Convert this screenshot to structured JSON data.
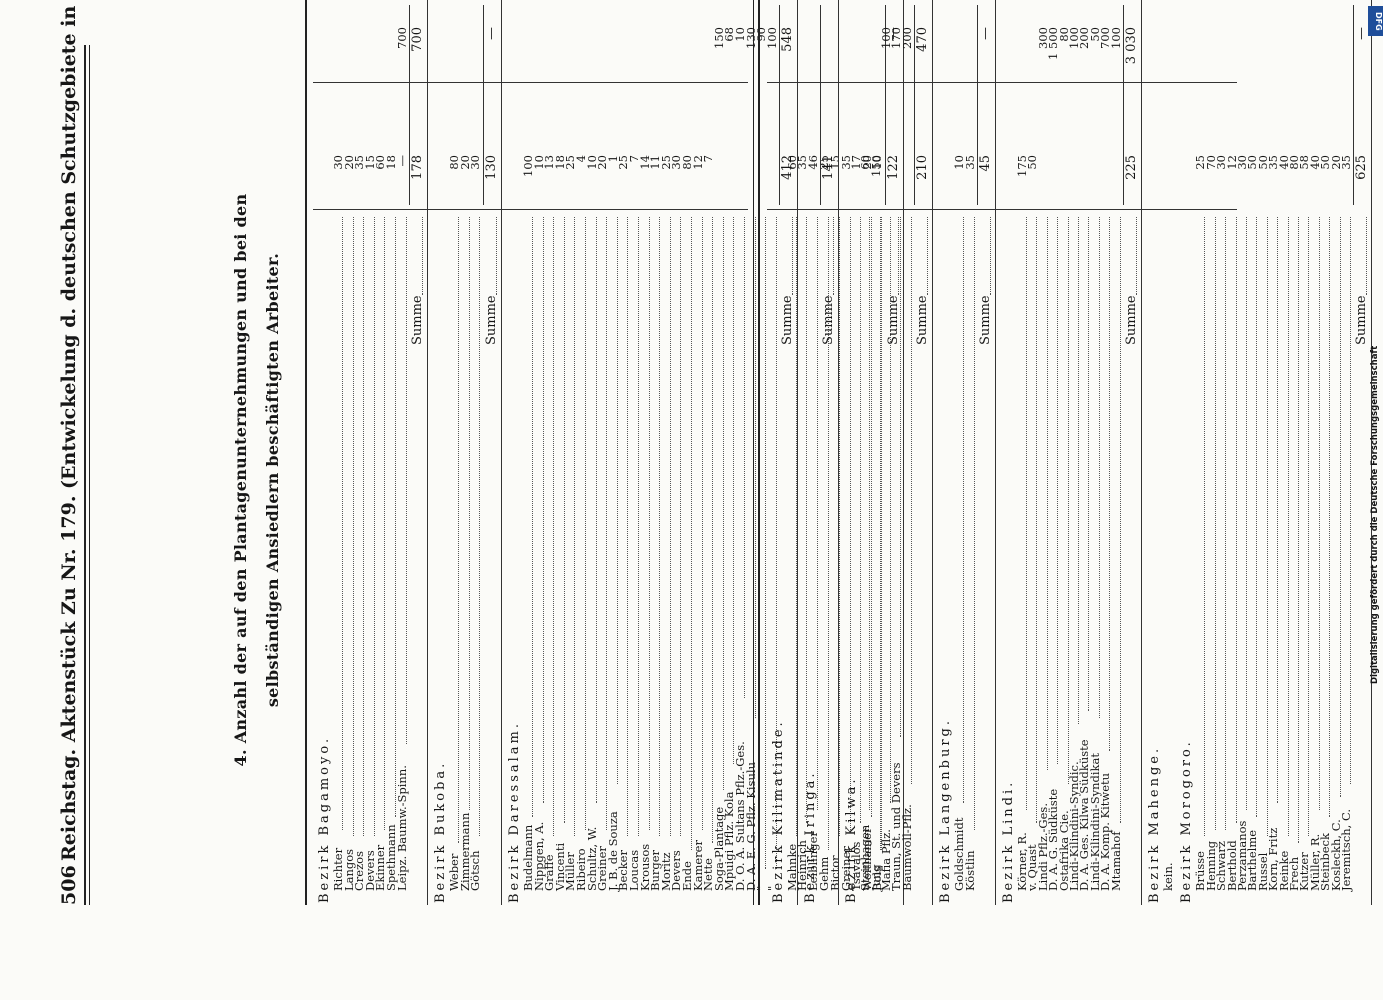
{
  "header": {
    "page_number": "506",
    "running_head": "Reichstag. Aktenstück Zu Nr. 179. (Entwickelung d. deutschen Schutzgebiete in Afrika u. d. Südsee. B.)"
  },
  "title": "4. Anzahl der auf den Plantagenunternehmungen und bei den selbständigen Ansiedlern beschäftigten Arbeiter.",
  "footer": {
    "note": "Digitalisierung gefördert durch die Deutsche Forschungsgemeinschaft",
    "badge": "DFG"
  },
  "left_sections": [
    {
      "title": "Bezirk Bagamoyo.",
      "rows": [
        {
          "name": "Richter",
          "a": "30",
          "b": ""
        },
        {
          "name": "Langos",
          "a": "20",
          "b": ""
        },
        {
          "name": "Crezos",
          "a": "35",
          "b": ""
        },
        {
          "name": "Devers",
          "a": "15",
          "b": ""
        },
        {
          "name": "Ekinner",
          "a": "60",
          "b": ""
        },
        {
          "name": "Spethmann",
          "a": "18",
          "b": ""
        },
        {
          "name": "Leipz. Baumw.-Spinn.",
          "a": "—",
          "b": "700"
        }
      ],
      "sum_label": "Summe",
      "sum_a": "178",
      "sum_b": "700"
    },
    {
      "title": "Bezirk Bukoba.",
      "rows": [
        {
          "name": "Weber",
          "a": "80",
          "b": ""
        },
        {
          "name": "Zimmermann",
          "a": "20",
          "b": ""
        },
        {
          "name": "Götsch",
          "a": "30",
          "b": ""
        }
      ],
      "sum_label": "Summe",
      "sum_a": "130",
      "sum_b": "—"
    },
    {
      "title": "Bezirk Daressalam.",
      "rows": [
        {
          "name": "Budelmann",
          "a": "100",
          "b": ""
        },
        {
          "name": "Nippgen, A.",
          "a": "10",
          "b": ""
        },
        {
          "name": "Graffe",
          "a": "13",
          "b": ""
        },
        {
          "name": "Vincenti",
          "a": "18",
          "b": ""
        },
        {
          "name": "Müller",
          "a": "25",
          "b": ""
        },
        {
          "name": "Ribeiro",
          "a": "4",
          "b": ""
        },
        {
          "name": "Schultz, W.",
          "a": "10",
          "b": ""
        },
        {
          "name": "Greiner",
          "a": "20",
          "b": ""
        },
        {
          "name": "J. B. de Souza",
          "a": "1",
          "b": ""
        },
        {
          "name": "Becker",
          "a": "25",
          "b": ""
        },
        {
          "name": "Loucas",
          "a": "7",
          "b": ""
        },
        {
          "name": "Krousos",
          "a": "14",
          "b": ""
        },
        {
          "name": "Burger",
          "a": "11",
          "b": ""
        },
        {
          "name": "Moritz",
          "a": "25",
          "b": ""
        },
        {
          "name": "Devers",
          "a": "30",
          "b": ""
        },
        {
          "name": "Ende",
          "a": "80",
          "b": ""
        },
        {
          "name": "Kamerer",
          "a": "12",
          "b": ""
        },
        {
          "name": "Nette",
          "a": "7",
          "b": ""
        },
        {
          "name": "Soga-Plantage",
          "a": "",
          "b": "150"
        },
        {
          "name": "Mpuigi Pflz. Kola",
          "a": "",
          "b": "68"
        },
        {
          "name": "D. O. A. Sultans Pflz.-Ges.",
          "a": "",
          "b": "10"
        },
        {
          "name": "D. A. E. G. Pflz. Kisulu",
          "a": "",
          "b": "130"
        },
        {
          "name": "\"",
          "a": "",
          "b": "90"
        },
        {
          "name": "\"",
          "a": "",
          "b": "100"
        }
      ],
      "sum_label": "Summe",
      "sum_a": "412",
      "sum_b": "548"
    },
    {
      "title": "Bezirk Iringa.",
      "rows": [
        {
          "name": "Gehm",
          "a": "25",
          "b": ""
        },
        {
          "name": "Bictor",
          "a": "15",
          "b": ""
        },
        {
          "name": "Greiner",
          "a": "35",
          "b": ""
        },
        {
          "name": "Tsavalos",
          "a": "17",
          "b": ""
        },
        {
          "name": "Weithamer",
          "a": "20",
          "b": ""
        },
        {
          "name": "Bols",
          "a": "10",
          "b": ""
        }
      ],
      "sum_label": "Summe",
      "sum_a": "122",
      "sum_b": "—"
    }
  ],
  "right_sections": [
    {
      "title": "Bezirk Kilimatinde.",
      "rows": [
        {
          "name": "Mahnke",
          "a": "60",
          "b": ""
        },
        {
          "name": "Heinrich",
          "a": "35",
          "b": ""
        },
        {
          "name": "Leiblinger",
          "a": "46",
          "b": ""
        }
      ],
      "sum_label": "Summe",
      "sum_a": "141",
      "sum_b": ""
    },
    {
      "title": "Bezirk Kilwa.",
      "rows": [
        {
          "name": "Steinhagen",
          "a": "60",
          "b": ""
        },
        {
          "name": "Jung",
          "a": "150",
          "b": ""
        },
        {
          "name": "Mafia Pflz.",
          "a": "",
          "b": "100"
        },
        {
          "name": "Traun, St. und Devers",
          "a": "",
          "b": "170"
        },
        {
          "name": "Baumwoll-Pflz.",
          "a": "",
          "b": "200"
        }
      ],
      "sum_label": "Summe",
      "sum_a": "210",
      "sum_b": "470"
    },
    {
      "title": "Bezirk Langenburg.",
      "rows": [
        {
          "name": "Goldschmidt",
          "a": "10",
          "b": ""
        },
        {
          "name": "Köstlin",
          "a": "35",
          "b": ""
        }
      ],
      "sum_label": "Summe",
      "sum_a": "45",
      "sum_b": "—"
    },
    {
      "title": "Bezirk Lindi.",
      "rows": [
        {
          "name": "Körner, R.",
          "a": "175",
          "b": ""
        },
        {
          "name": "v. Quast",
          "a": "50",
          "b": ""
        },
        {
          "name": "Lindi Pflz.-Ges.",
          "a": "",
          "b": "300"
        },
        {
          "name": "D. A. G. Südküste",
          "a": "",
          "b": "1 500"
        },
        {
          "name": "Ostafrika Cie.",
          "a": "",
          "b": "80"
        },
        {
          "name": "Lindi-Kilindini-Syndic.",
          "a": "",
          "b": "100"
        },
        {
          "name": "D. A. Ges. Kilwa Südküste",
          "a": "",
          "b": "200"
        },
        {
          "name": "Lindi-Kilindini-Syndikat",
          "a": "",
          "b": "50"
        },
        {
          "name": "D. A. Komp. Kitwetu",
          "a": "",
          "b": "700"
        },
        {
          "name": "Mtamahof",
          "a": "",
          "b": "100"
        }
      ],
      "sum_label": "Summe",
      "sum_a": "225",
      "sum_b": "3 030"
    },
    {
      "title": "Bezirk Mahenge.",
      "rows": [
        {
          "name": "kein.",
          "a": "",
          "b": ""
        }
      ],
      "sum_label": "",
      "sum_a": "",
      "sum_b": ""
    },
    {
      "title": "Bezirk Morogoro.",
      "rows": [
        {
          "name": "Brüsse",
          "a": "25",
          "b": ""
        },
        {
          "name": "Henning",
          "a": "70",
          "b": ""
        },
        {
          "name": "Schwarz",
          "a": "30",
          "b": ""
        },
        {
          "name": "Berthold",
          "a": "12",
          "b": ""
        },
        {
          "name": "Perzamanos",
          "a": "30",
          "b": ""
        },
        {
          "name": "Barthelme",
          "a": "50",
          "b": ""
        },
        {
          "name": "Russel",
          "a": "50",
          "b": ""
        },
        {
          "name": "Korn, Fritz",
          "a": "35",
          "b": ""
        },
        {
          "name": "Reinke",
          "a": "40",
          "b": ""
        },
        {
          "name": "Frech",
          "a": "80",
          "b": ""
        },
        {
          "name": "Kutzer",
          "a": "58",
          "b": ""
        },
        {
          "name": "Müller, R.",
          "a": "40",
          "b": ""
        },
        {
          "name": "Steinbeck",
          "a": "50",
          "b": ""
        },
        {
          "name": "Kosleckh, C.",
          "a": "20",
          "b": ""
        },
        {
          "name": "Jeremitsch, C.",
          "a": "35",
          "b": ""
        }
      ],
      "sum_label": "Summe",
      "sum_a": "625",
      "sum_b": "—"
    }
  ]
}
